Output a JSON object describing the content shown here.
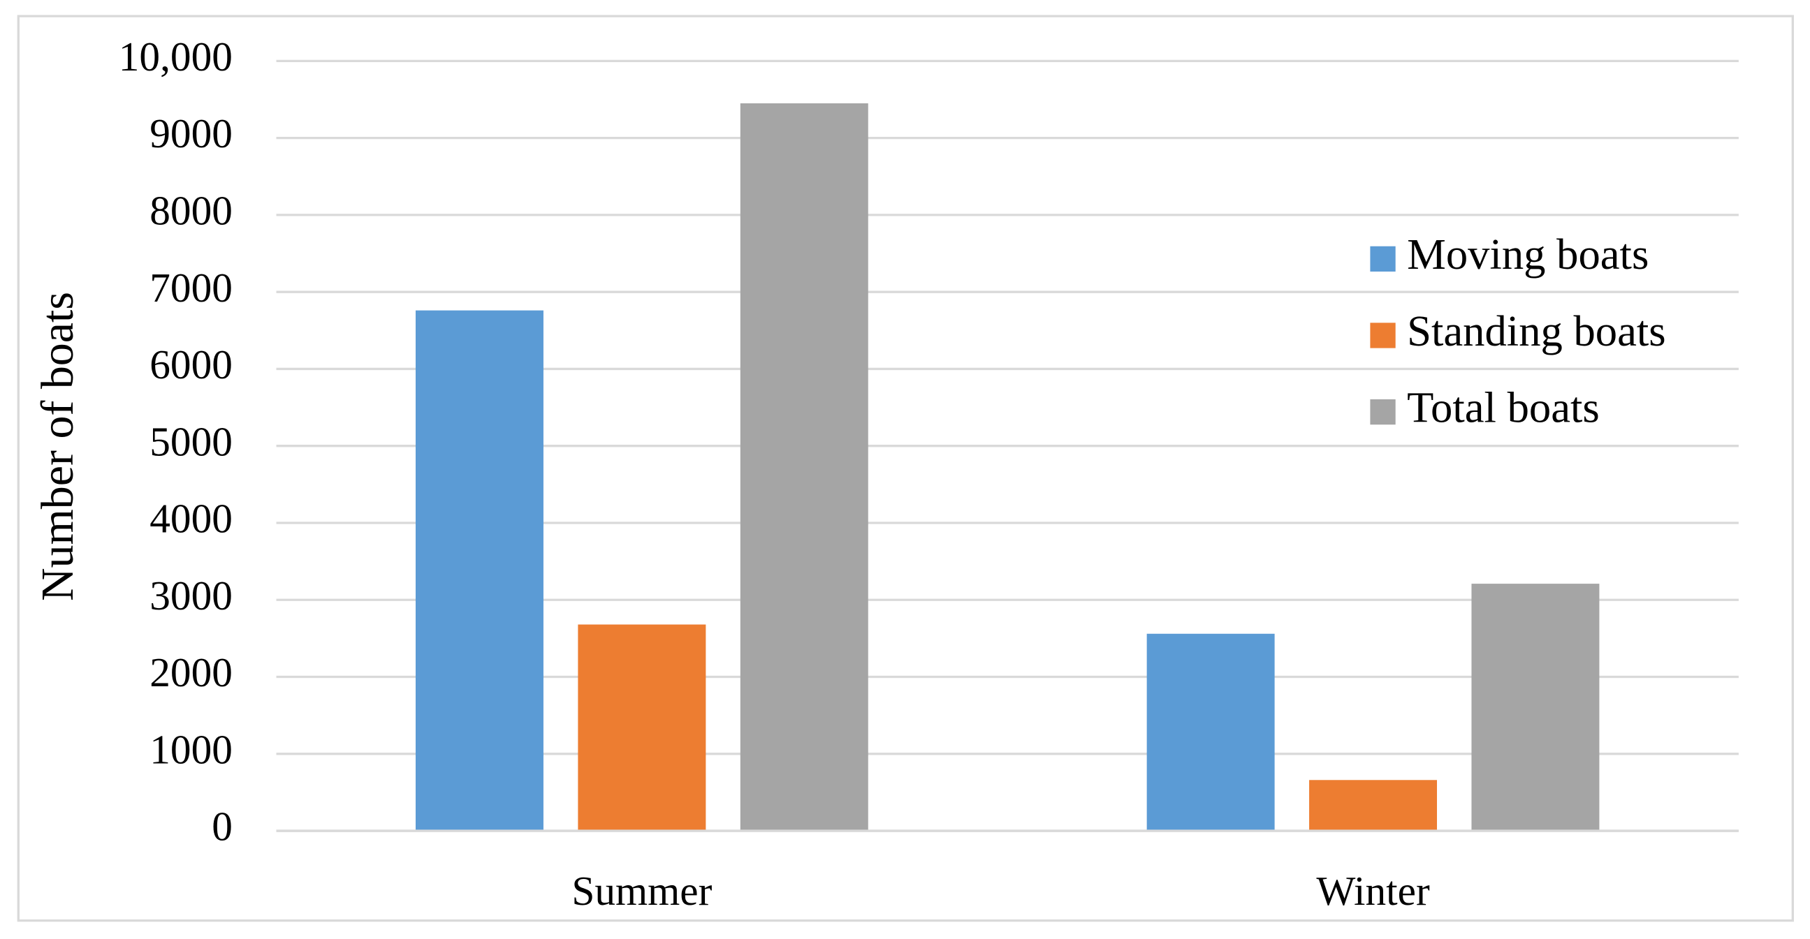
{
  "chart_data": {
    "type": "bar",
    "y_label": "Number of boats",
    "categories": [
      "Summer",
      "Winter"
    ],
    "series": [
      {
        "name": "Moving boats",
        "color": "#5b9bd5",
        "values": [
          6760,
          2560
        ]
      },
      {
        "name": "Standing boats",
        "color": "#ed7d31",
        "values": [
          2680,
          660
        ]
      },
      {
        "name": "Total boats",
        "color": "#a5a5a5",
        "values": [
          9450,
          3210
        ]
      }
    ],
    "ylim": [
      0,
      10000
    ],
    "yticks": [
      0,
      1000,
      2000,
      3000,
      4000,
      5000,
      6000,
      7000,
      8000,
      9000,
      {
        "value": 10000,
        "label": "10,000"
      }
    ],
    "grid": true,
    "legend": "right"
  }
}
